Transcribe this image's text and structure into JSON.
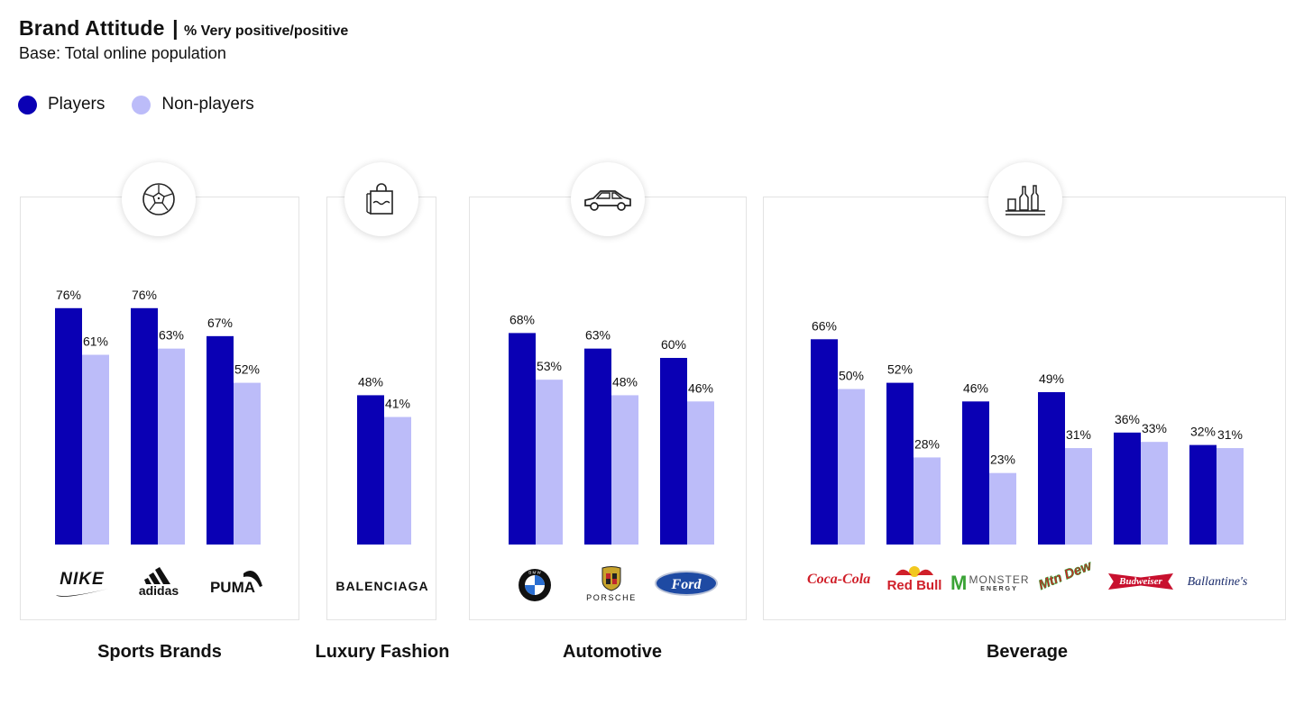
{
  "header": {
    "title": "Brand Attitude",
    "separator": "|",
    "subtitle": "% Very positive/positive",
    "base": "Base: Total online population"
  },
  "legend": {
    "players": "Players",
    "non_players": "Non-players"
  },
  "colors": {
    "players": "#0a00b4",
    "non_players": "#bcbcf9"
  },
  "icons": {
    "sports": "soccer-ball-icon",
    "fashion": "shopping-bag-icon",
    "automotive": "car-icon",
    "beverage": "bottles-icon"
  },
  "brands": {
    "nike": "NIKE",
    "adidas": "adidas",
    "puma": "PUMA",
    "balenciaga": "BALENCIAGA",
    "bmw": "B M W",
    "porsche": "PORSCHE",
    "ford": "Ford",
    "cocacola": "Coca-Cola",
    "redbull": "Red Bull",
    "monster": "MONSTER",
    "monster_sub": "ENERGY",
    "mtndew": "Mtn Dew",
    "budweiser": "Budweiser",
    "ballantines": "Ballantine's"
  },
  "chart_data": {
    "type": "bar",
    "title": "Brand Attitude | % Very positive/positive",
    "subtitle": "Base: Total online population",
    "series_names": [
      "Players",
      "Non-players"
    ],
    "groups": [
      {
        "category": "Sports Brands",
        "brands": [
          "Nike",
          "Adidas",
          "Puma"
        ],
        "players": [
          76,
          76,
          67
        ],
        "non_players": [
          61,
          63,
          52
        ]
      },
      {
        "category": "Luxury Fashion",
        "brands": [
          "Balenciaga"
        ],
        "players": [
          48
        ],
        "non_players": [
          41
        ]
      },
      {
        "category": "Automotive",
        "brands": [
          "BMW",
          "Porsche",
          "Ford"
        ],
        "players": [
          68,
          63,
          60
        ],
        "non_players": [
          53,
          48,
          46
        ]
      },
      {
        "category": "Beverage",
        "brands": [
          "Coca-Cola",
          "Red Bull",
          "Monster Energy",
          "Mountain Dew",
          "Budweiser",
          "Ballantine's"
        ],
        "players": [
          66,
          52,
          46,
          49,
          36,
          32
        ],
        "non_players": [
          50,
          28,
          23,
          31,
          33,
          31
        ]
      }
    ],
    "value_suffix": "%",
    "ylim": [
      0,
      100
    ],
    "legend_position": "top-left",
    "grid": false
  }
}
